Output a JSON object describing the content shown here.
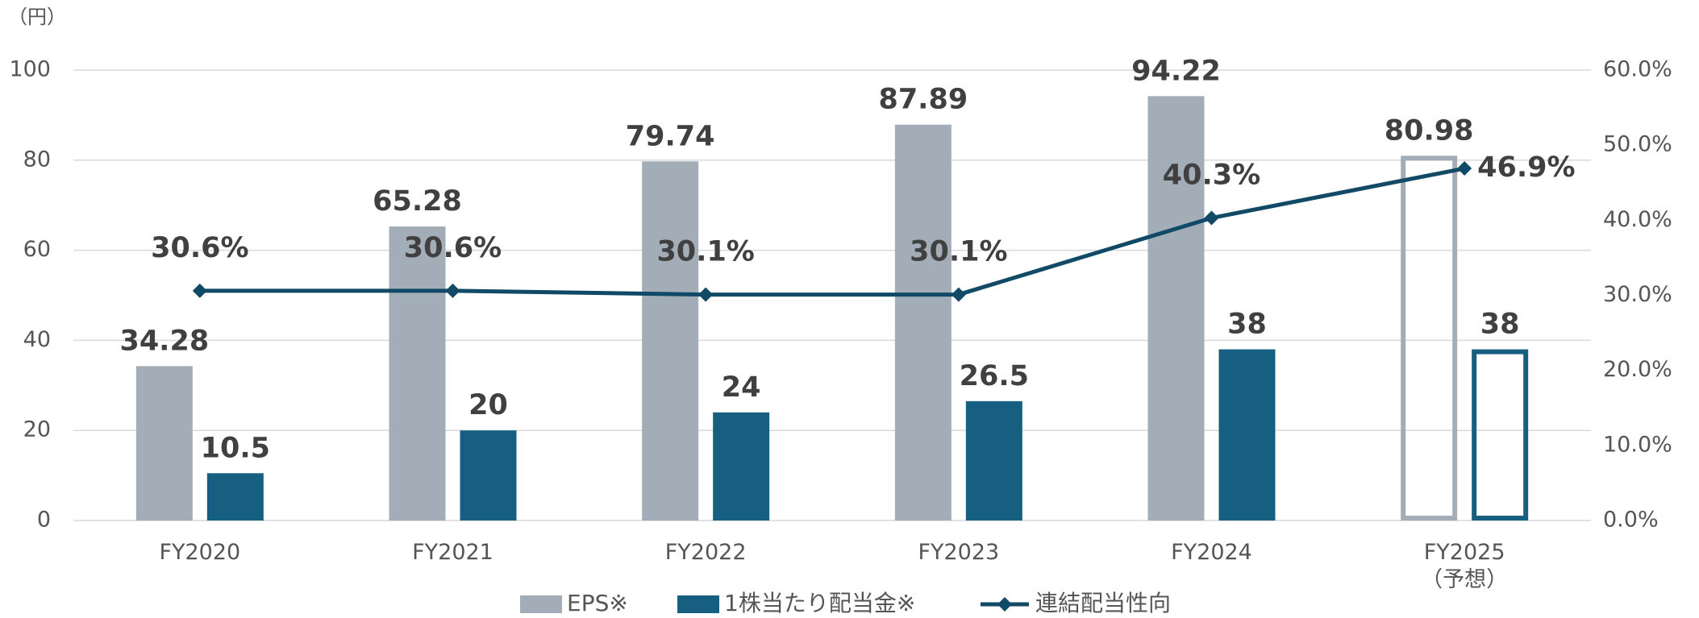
{
  "chart_data": {
    "type": "bar",
    "y_label": "（円）",
    "categories": [
      "FY2020",
      "FY2021",
      "FY2022",
      "FY2023",
      "FY2024",
      "FY2025\n（予想）"
    ],
    "hollow": [
      false,
      false,
      false,
      false,
      false,
      true
    ],
    "series": [
      {
        "name": "EPS※",
        "color": "#a2adb8",
        "values": [
          34.28,
          65.28,
          79.74,
          87.89,
          94.22,
          80.98
        ]
      },
      {
        "name": "1株当たり配当金※",
        "color": "#165f80",
        "values": [
          10.5,
          20,
          24,
          26.5,
          38,
          38
        ]
      },
      {
        "name": "連結配当性向",
        "type": "line",
        "axis": "y2",
        "color": "#114a66",
        "values": [
          30.6,
          30.6,
          30.1,
          30.1,
          40.3,
          46.9
        ],
        "value_labels": [
          "30.6%",
          "30.6%",
          "30.1%",
          "30.1%",
          "40.3%",
          "46.9%"
        ]
      }
    ],
    "ylim": [
      0,
      100
    ],
    "yticks": [
      0,
      20,
      40,
      60,
      80,
      100
    ],
    "y2lim": [
      0,
      60
    ],
    "y2ticks": [
      {
        "value": 0,
        "label": "0.0%"
      },
      {
        "value": 10,
        "label": "10.0%"
      },
      {
        "value": 20,
        "label": "20.0%"
      },
      {
        "value": 30,
        "label": "30.0%"
      },
      {
        "value": 40,
        "label": "40.0%"
      },
      {
        "value": 50,
        "label": "50.0%"
      },
      {
        "value": 60,
        "label": "60.0%"
      }
    ],
    "grid": true
  }
}
